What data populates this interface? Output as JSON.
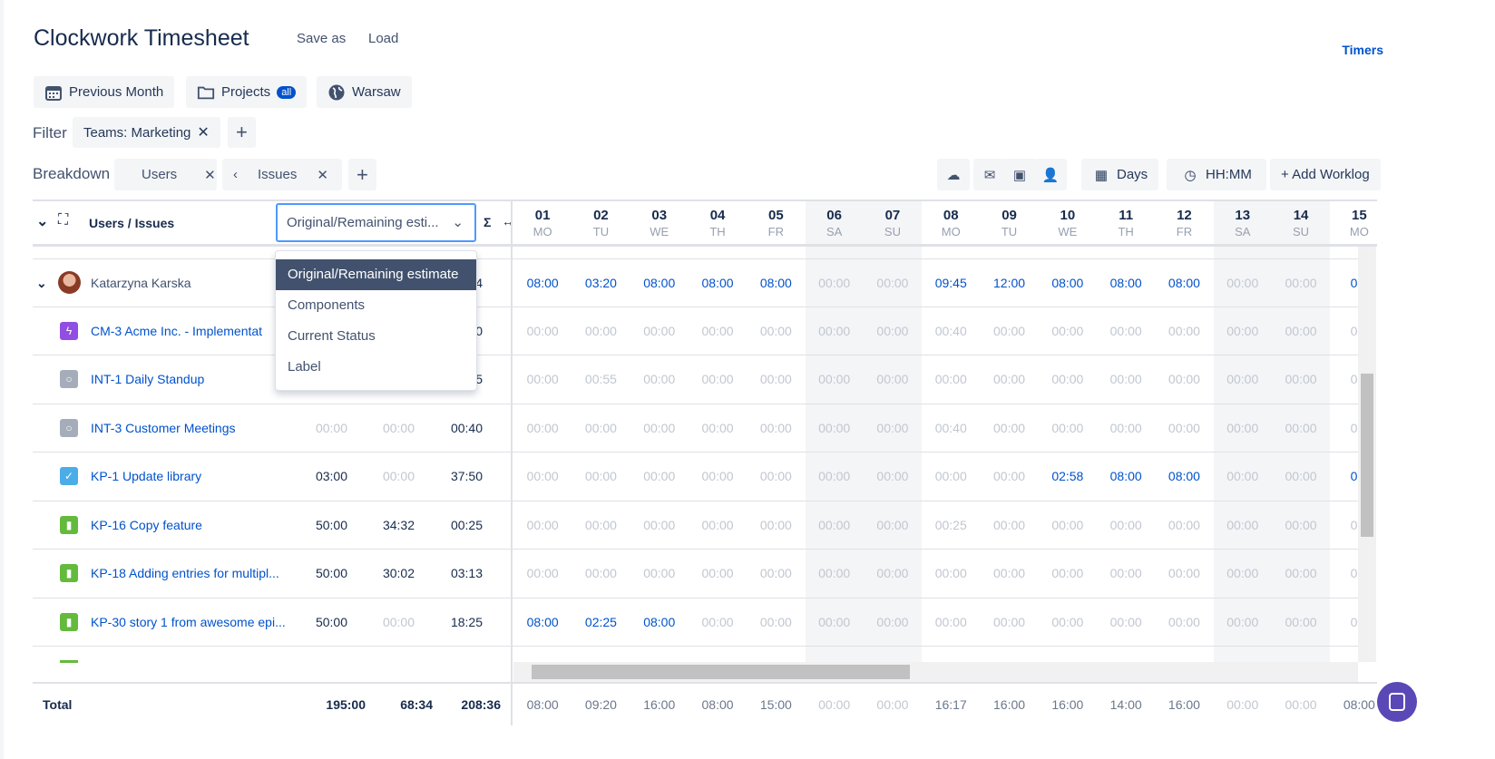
{
  "header": {
    "title": "Clockwork Timesheet",
    "save_as": "Save as",
    "load": "Load",
    "timers": "Timers"
  },
  "toolbar": {
    "period": "Previous Month",
    "projects": "Projects",
    "projects_badge": "all",
    "timezone": "Warsaw"
  },
  "filter": {
    "label": "Filter",
    "chip": "Teams: Marketing"
  },
  "breakdown": {
    "label": "Breakdown",
    "chips": [
      "Users",
      "Issues"
    ]
  },
  "actions": {
    "days": "Days",
    "format": "HH:MM",
    "add_worklog": "+ Add Worklog",
    "icons": [
      "cloud-download-icon",
      "mail-icon",
      "monitor-check-icon",
      "user-check-icon"
    ]
  },
  "table": {
    "title": "Users / Issues",
    "sigma": "Σ",
    "resize": "↔",
    "select_value": "Original/Remaining esti...",
    "select_options": [
      "Original/Remaining estimate",
      "Components",
      "Current Status",
      "Label"
    ],
    "days": [
      [
        "01",
        "MO"
      ],
      [
        "02",
        "TU"
      ],
      [
        "03",
        "WE"
      ],
      [
        "04",
        "TH"
      ],
      [
        "05",
        "FR"
      ],
      [
        "06",
        "SA"
      ],
      [
        "07",
        "SU"
      ],
      [
        "08",
        "MO"
      ],
      [
        "09",
        "TU"
      ],
      [
        "10",
        "WE"
      ],
      [
        "11",
        "TH"
      ],
      [
        "12",
        "FR"
      ],
      [
        "13",
        "SA"
      ],
      [
        "14",
        "SU"
      ],
      [
        "15",
        "MO"
      ]
    ],
    "rows": [
      {
        "name": "Katarzyna Karska",
        "type": "user",
        "c1": "",
        "c2": "",
        "c3": "5:04",
        "d": [
          "08:00",
          "03:20",
          "08:00",
          "08:00",
          "08:00",
          "00:00",
          "00:00",
          "09:45",
          "12:00",
          "08:00",
          "08:00",
          "08:00",
          "00:00",
          "00:00",
          "08:"
        ]
      },
      {
        "name": "CM-3 Acme Inc. - Implementat",
        "type": "epic",
        "c1": "",
        "c2": "",
        "c3": "0:40",
        "d": [
          "00:00",
          "00:00",
          "00:00",
          "00:00",
          "00:00",
          "00:00",
          "00:00",
          "00:40",
          "00:00",
          "00:00",
          "00:00",
          "00:00",
          "00:00",
          "00:00",
          "00:"
        ]
      },
      {
        "name": "INT-1 Daily Standup",
        "type": "task-gray",
        "c1": "",
        "c2": "",
        "c3": "0:55",
        "d": [
          "00:00",
          "00:55",
          "00:00",
          "00:00",
          "00:00",
          "00:00",
          "00:00",
          "00:00",
          "00:00",
          "00:00",
          "00:00",
          "00:00",
          "00:00",
          "00:00",
          "00:"
        ]
      },
      {
        "name": "INT-3 Customer Meetings",
        "type": "task-gray",
        "c1": "00:00",
        "c2": "00:00",
        "c3": "00:40",
        "d": [
          "00:00",
          "00:00",
          "00:00",
          "00:00",
          "00:00",
          "00:00",
          "00:00",
          "00:40",
          "00:00",
          "00:00",
          "00:00",
          "00:00",
          "00:00",
          "00:00",
          "00:"
        ]
      },
      {
        "name": "KP-1 Update library",
        "type": "task",
        "c1": "03:00",
        "c2": "00:00",
        "c3": "37:50",
        "d": [
          "00:00",
          "00:00",
          "00:00",
          "00:00",
          "00:00",
          "00:00",
          "00:00",
          "00:00",
          "00:00",
          "02:58",
          "08:00",
          "08:00",
          "00:00",
          "00:00",
          "08:"
        ]
      },
      {
        "name": "KP-16 Copy feature",
        "type": "story",
        "c1": "50:00",
        "c2": "34:32",
        "c3": "00:25",
        "d": [
          "00:00",
          "00:00",
          "00:00",
          "00:00",
          "00:00",
          "00:00",
          "00:00",
          "00:25",
          "00:00",
          "00:00",
          "00:00",
          "00:00",
          "00:00",
          "00:00",
          "00:"
        ]
      },
      {
        "name": "KP-18 Adding entries for multipl...",
        "type": "story",
        "c1": "50:00",
        "c2": "30:02",
        "c3": "03:13",
        "d": [
          "00:00",
          "00:00",
          "00:00",
          "00:00",
          "00:00",
          "00:00",
          "00:00",
          "00:00",
          "00:00",
          "00:00",
          "00:00",
          "00:00",
          "00:00",
          "00:00",
          "00:"
        ]
      },
      {
        "name": "KP-30 story 1 from awesome epi...",
        "type": "story",
        "c1": "50:00",
        "c2": "00:00",
        "c3": "18:25",
        "d": [
          "08:00",
          "02:25",
          "08:00",
          "00:00",
          "00:00",
          "00:00",
          "00:00",
          "00:00",
          "00:00",
          "00:00",
          "00:00",
          "00:00",
          "00:00",
          "00:00",
          "00:"
        ]
      }
    ],
    "total": {
      "label": "Total",
      "c1": "195:00",
      "c2": "68:34",
      "c3": "208:36",
      "d": [
        "08:00",
        "09:20",
        "16:00",
        "08:00",
        "15:00",
        "00:00",
        "00:00",
        "16:17",
        "16:00",
        "16:00",
        "14:00",
        "16:00",
        "00:00",
        "00:00",
        "08:00"
      ]
    }
  },
  "colors": {
    "link": "#0052cc",
    "muted": "#c1c7d0",
    "weekend": "#f4f5f7",
    "selected": "#42526e",
    "focus": "#4c9aff",
    "epic": "#904ee2",
    "task": "#4bade8",
    "story": "#63ba3c",
    "gray": "#a5adba"
  }
}
